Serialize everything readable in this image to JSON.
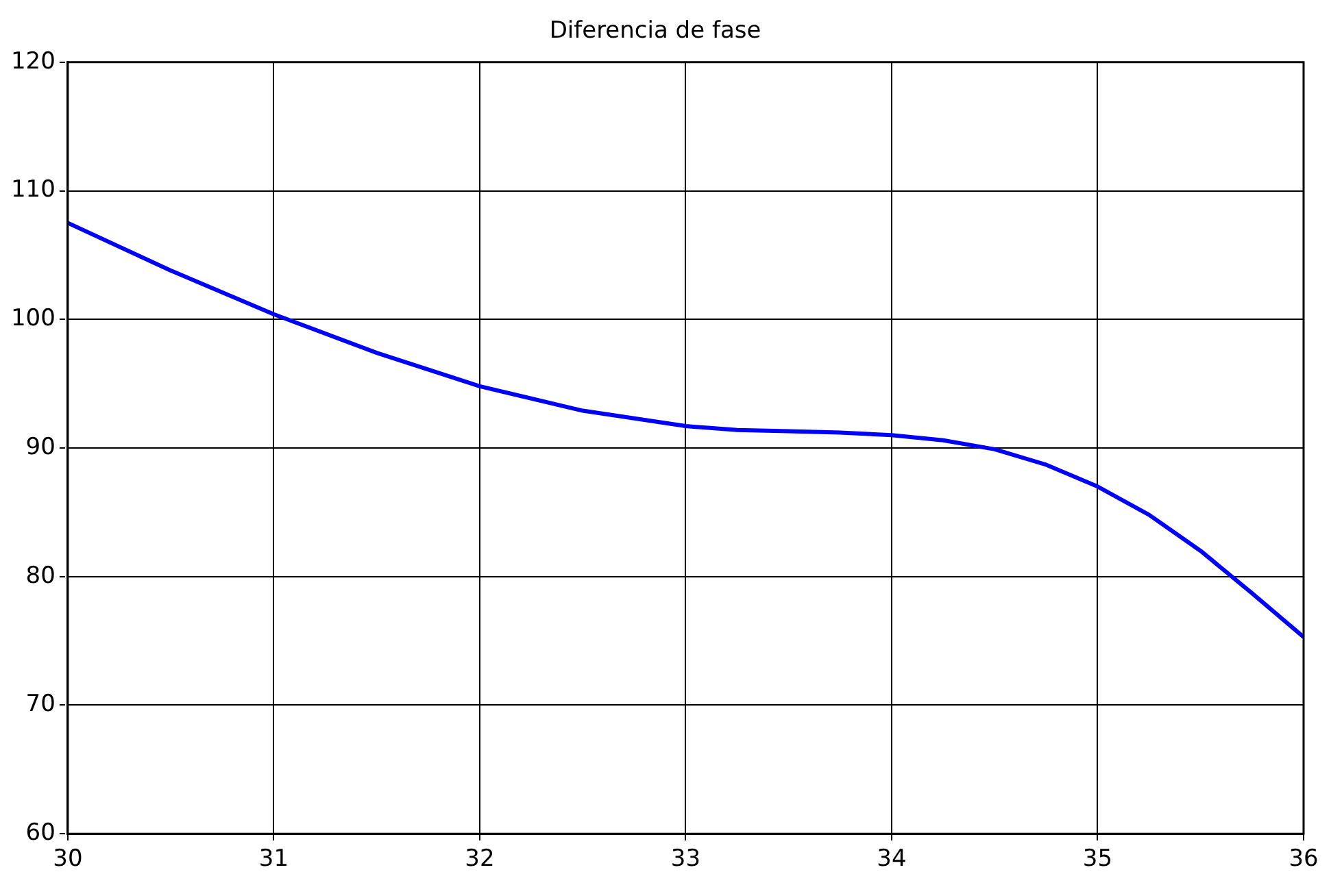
{
  "chart_data": {
    "type": "line",
    "title": "Diferencia de fase",
    "x": [
      30,
      30.5,
      31,
      31.5,
      32,
      32.5,
      33,
      33.25,
      33.5,
      33.75,
      34,
      34.25,
      34.5,
      34.75,
      35,
      35.25,
      35.5,
      35.75,
      36
    ],
    "series": [
      {
        "color": "#0000ff",
        "values": [
          107.5,
          103.8,
          100.4,
          97.4,
          94.8,
          92.9,
          91.7,
          91.4,
          91.3,
          91.2,
          91.0,
          90.6,
          89.9,
          88.7,
          87.0,
          84.8,
          82.0,
          78.7,
          75.3
        ]
      }
    ],
    "xlim": [
      30,
      36
    ],
    "xticks": [
      30,
      31,
      32,
      33,
      34,
      35,
      36
    ],
    "ylim": [
      60,
      120
    ],
    "yticks": [
      60,
      70,
      80,
      90,
      100,
      110,
      120
    ],
    "grid": true,
    "legend": false,
    "marker": "none",
    "line_style": "solid"
  }
}
